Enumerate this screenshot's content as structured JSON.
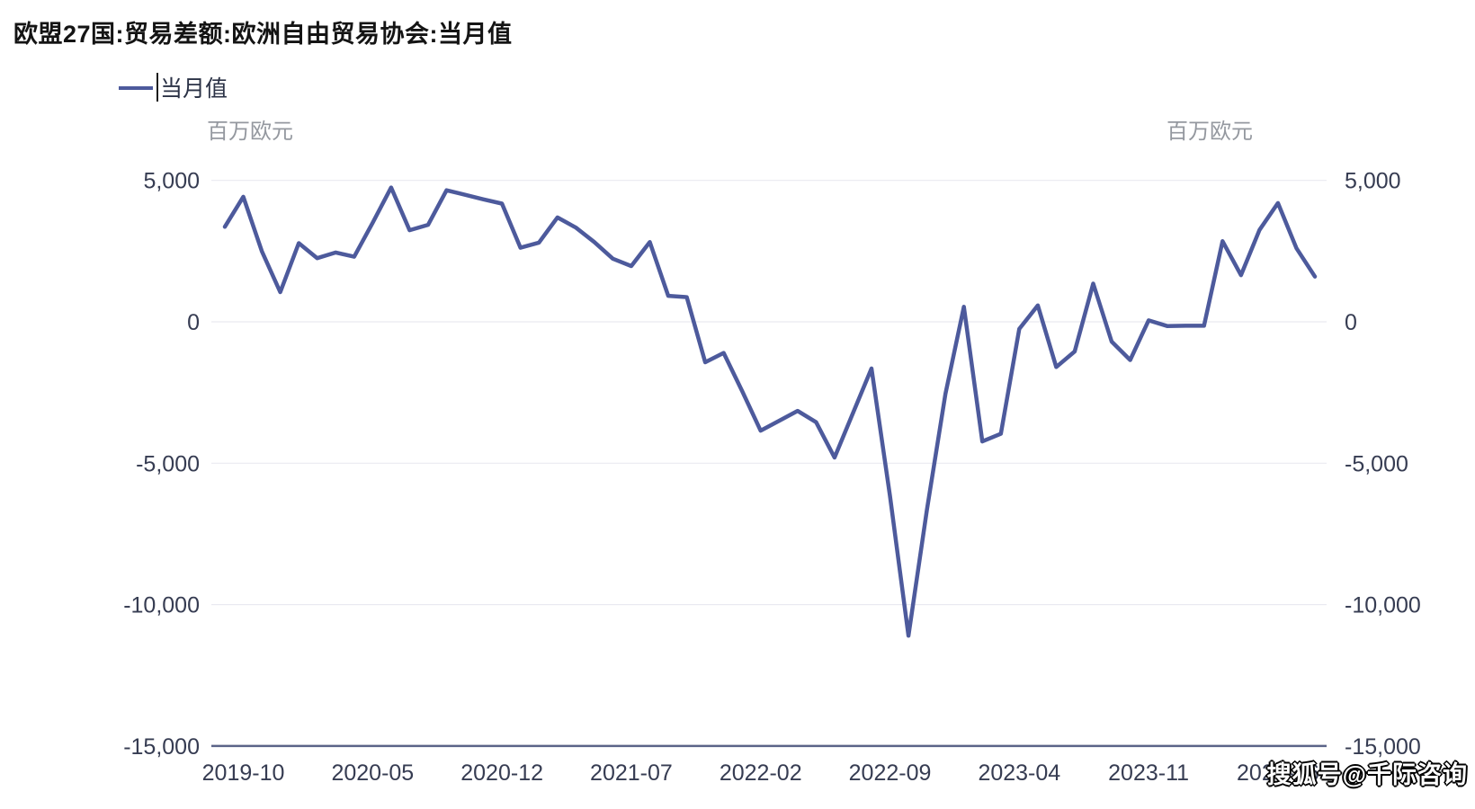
{
  "page": {
    "title": "欧盟27国:贸易差额:欧洲自由贸易协会:当月值",
    "watermark": "搜狐号@千际咨询"
  },
  "legend": {
    "label": "当月值"
  },
  "axes": {
    "unit_left": "百万欧元",
    "unit_right": "百万欧元"
  },
  "colors": {
    "series": "#4d5a9c",
    "grid": "#e9e9f1",
    "axis": "#5b6488",
    "tick_text": "#363c52",
    "unit_text": "#94989f"
  },
  "chart_data": {
    "type": "line",
    "title": "欧盟27国:贸易差额:欧洲自由贸易协会:当月值",
    "unit": "百万欧元",
    "grid": "horizontal",
    "legend_position": "top-left",
    "ylim": [
      -15000,
      5000
    ],
    "y_ticks": [
      5000,
      0,
      -5000,
      -10000,
      -15000
    ],
    "y_tick_labels": [
      "5,000",
      "0",
      "-5,000",
      "-10,000",
      "-15,000"
    ],
    "x": [
      "2019-09",
      "2019-10",
      "2019-11",
      "2019-12",
      "2020-01",
      "2020-02",
      "2020-03",
      "2020-04",
      "2020-05",
      "2020-06",
      "2020-07",
      "2020-08",
      "2020-09",
      "2020-10",
      "2020-11",
      "2020-12",
      "2021-01",
      "2021-02",
      "2021-03",
      "2021-04",
      "2021-05",
      "2021-06",
      "2021-07",
      "2021-08",
      "2021-09",
      "2021-10",
      "2021-11",
      "2021-12",
      "2022-01",
      "2022-02",
      "2022-03",
      "2022-04",
      "2022-05",
      "2022-06",
      "2022-07",
      "2022-08",
      "2022-09",
      "2022-10",
      "2022-11",
      "2022-12",
      "2023-01",
      "2023-02",
      "2023-03",
      "2023-04",
      "2023-05",
      "2023-06",
      "2023-07",
      "2023-08",
      "2023-09",
      "2023-10",
      "2023-11",
      "2023-12",
      "2024-01",
      "2024-02",
      "2024-03",
      "2024-04",
      "2024-05",
      "2024-06",
      "2024-07",
      "2024-08"
    ],
    "x_tick_labels": [
      "2019-10",
      "2020-05",
      "2020-12",
      "2021-07",
      "2022-02",
      "2022-09",
      "2023-04",
      "2023-11",
      "2024-06"
    ],
    "x_tick_indices": [
      1,
      8,
      15,
      22,
      29,
      36,
      43,
      50,
      57
    ],
    "series": [
      {
        "name": "当月值",
        "values": [
          3360,
          4420,
          2500,
          1050,
          2780,
          2250,
          2450,
          2300,
          3500,
          4750,
          3240,
          3430,
          4650,
          4490,
          4330,
          4180,
          2620,
          2800,
          3690,
          3330,
          2820,
          2230,
          1970,
          2820,
          920,
          870,
          -1430,
          -1100,
          -2450,
          -3850,
          -3500,
          -3150,
          -3550,
          -4800,
          -3225,
          -1650,
          -6150,
          -11100,
          -6650,
          -2550,
          530,
          -4230,
          -3960,
          -250,
          580,
          -1600,
          -1050,
          1350,
          -700,
          -1350,
          50,
          -150,
          -140,
          -140,
          2850,
          1650,
          3250,
          4200,
          2600,
          1600
        ]
      }
    ]
  }
}
